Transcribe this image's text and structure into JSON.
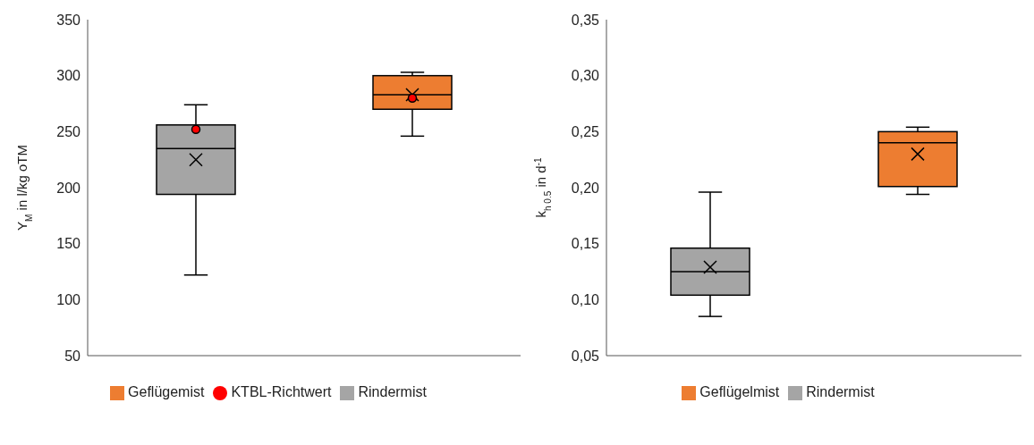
{
  "chart_data": [
    {
      "type": "box",
      "ylabel": "Y$_{M}$ in l/kg oTM",
      "categories": [
        null,
        null
      ],
      "ylim": [
        50,
        350
      ],
      "yticks": [
        50,
        100,
        150,
        200,
        250,
        300,
        350
      ],
      "legend": "bottom",
      "grid": false,
      "series": [
        {
          "name": "Rindermist",
          "color": "#a5a5a5",
          "boxes": [
            {
              "low": 122,
              "q1": 194,
              "median": 235,
              "q3": 256,
              "high": 274,
              "mean": 225
            },
            null
          ]
        },
        {
          "name": "Geflügemist",
          "color": "#ed7d31",
          "boxes": [
            null,
            {
              "low": 246,
              "q1": 270,
              "median": 283,
              "q3": 300,
              "high": 303,
              "mean": 283
            }
          ]
        },
        {
          "name": "KTBL-Richtwert",
          "type": "scatter",
          "color": "#ff0000",
          "marker": "circle",
          "values": [
            252,
            280
          ]
        }
      ]
    },
    {
      "type": "box",
      "ylabel": "k$_{h 0.5}$ in d$^{-1}$",
      "categories": [
        null,
        null
      ],
      "ylim": [
        0.05,
        0.35
      ],
      "yticks": [
        {
          "value": 0.05,
          "label": "0,05"
        },
        {
          "value": 0.1,
          "label": "0,10"
        },
        {
          "value": 0.15,
          "label": "0,15"
        },
        {
          "value": 0.2,
          "label": "0,20"
        },
        {
          "value": 0.25,
          "label": "0,25"
        },
        {
          "value": 0.3,
          "label": "0,30"
        },
        {
          "value": 0.35,
          "label": "0,35"
        }
      ],
      "legend": "bottom",
      "grid": false,
      "series": [
        {
          "name": "Rindermist",
          "color": "#a5a5a5",
          "boxes": [
            {
              "low": 0.085,
              "q1": 0.104,
              "median": 0.125,
              "q3": 0.146,
              "high": 0.196,
              "mean": 0.129
            },
            null
          ]
        },
        {
          "name": "Geflügelmist",
          "color": "#ed7d31",
          "boxes": [
            null,
            {
              "low": 0.194,
              "q1": 0.201,
              "median": 0.24,
              "q3": 0.25,
              "high": 0.254,
              "mean": 0.23
            }
          ]
        }
      ]
    }
  ]
}
